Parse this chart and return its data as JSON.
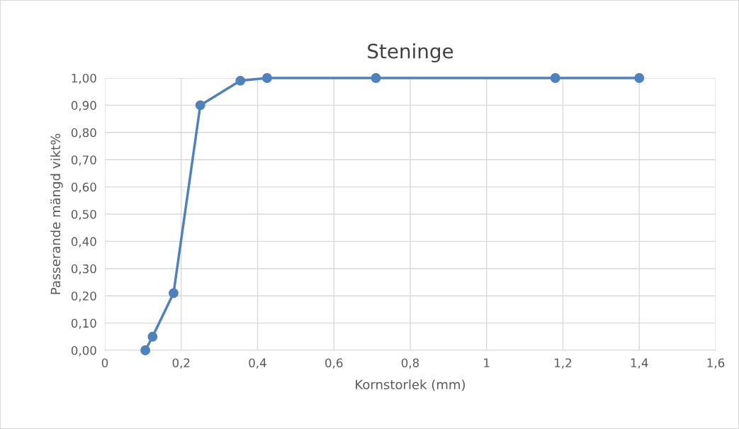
{
  "chart_data": {
    "type": "line",
    "title": "Steninge",
    "xlabel": "Kornstorlek (mm)",
    "ylabel": "Passerande mängd vikt%",
    "x": [
      0.106,
      0.125,
      0.18,
      0.25,
      0.355,
      0.425,
      0.71,
      1.18,
      1.4
    ],
    "series": [
      {
        "color": "#4f81bd",
        "values": [
          0.0,
          0.05,
          0.21,
          0.9,
          0.99,
          1.0,
          1.0,
          1.0,
          1.0
        ]
      }
    ],
    "xlim": [
      0,
      1.6
    ],
    "xticks": [
      0,
      {
        "value": 0.2,
        "label": "0,2"
      },
      {
        "value": 0.4,
        "label": "0,4"
      },
      {
        "value": 0.6,
        "label": "0,6"
      },
      {
        "value": 0.8,
        "label": "0,8"
      },
      1,
      {
        "value": 1.2,
        "label": "1,2"
      },
      {
        "value": 1.4,
        "label": "1,4"
      },
      {
        "value": 1.6,
        "label": "1,6"
      }
    ],
    "ylim": [
      0,
      1
    ],
    "yticks": [
      {
        "value": 0,
        "label": "0,00"
      },
      {
        "value": 0.1,
        "label": "0,10"
      },
      {
        "value": 0.2,
        "label": "0,20"
      },
      {
        "value": 0.3,
        "label": "0,30"
      },
      {
        "value": 0.4,
        "label": "0,40"
      },
      {
        "value": 0.5,
        "label": "0,50"
      },
      {
        "value": 0.6,
        "label": "0,60"
      },
      {
        "value": 0.7,
        "label": "0,70"
      },
      {
        "value": 0.8,
        "label": "0,80"
      },
      {
        "value": 0.9,
        "label": "0,90"
      },
      {
        "value": 1.0,
        "label": "1,00"
      }
    ],
    "grid": true,
    "marker": "circle",
    "line_style": "solid",
    "legend": false
  }
}
